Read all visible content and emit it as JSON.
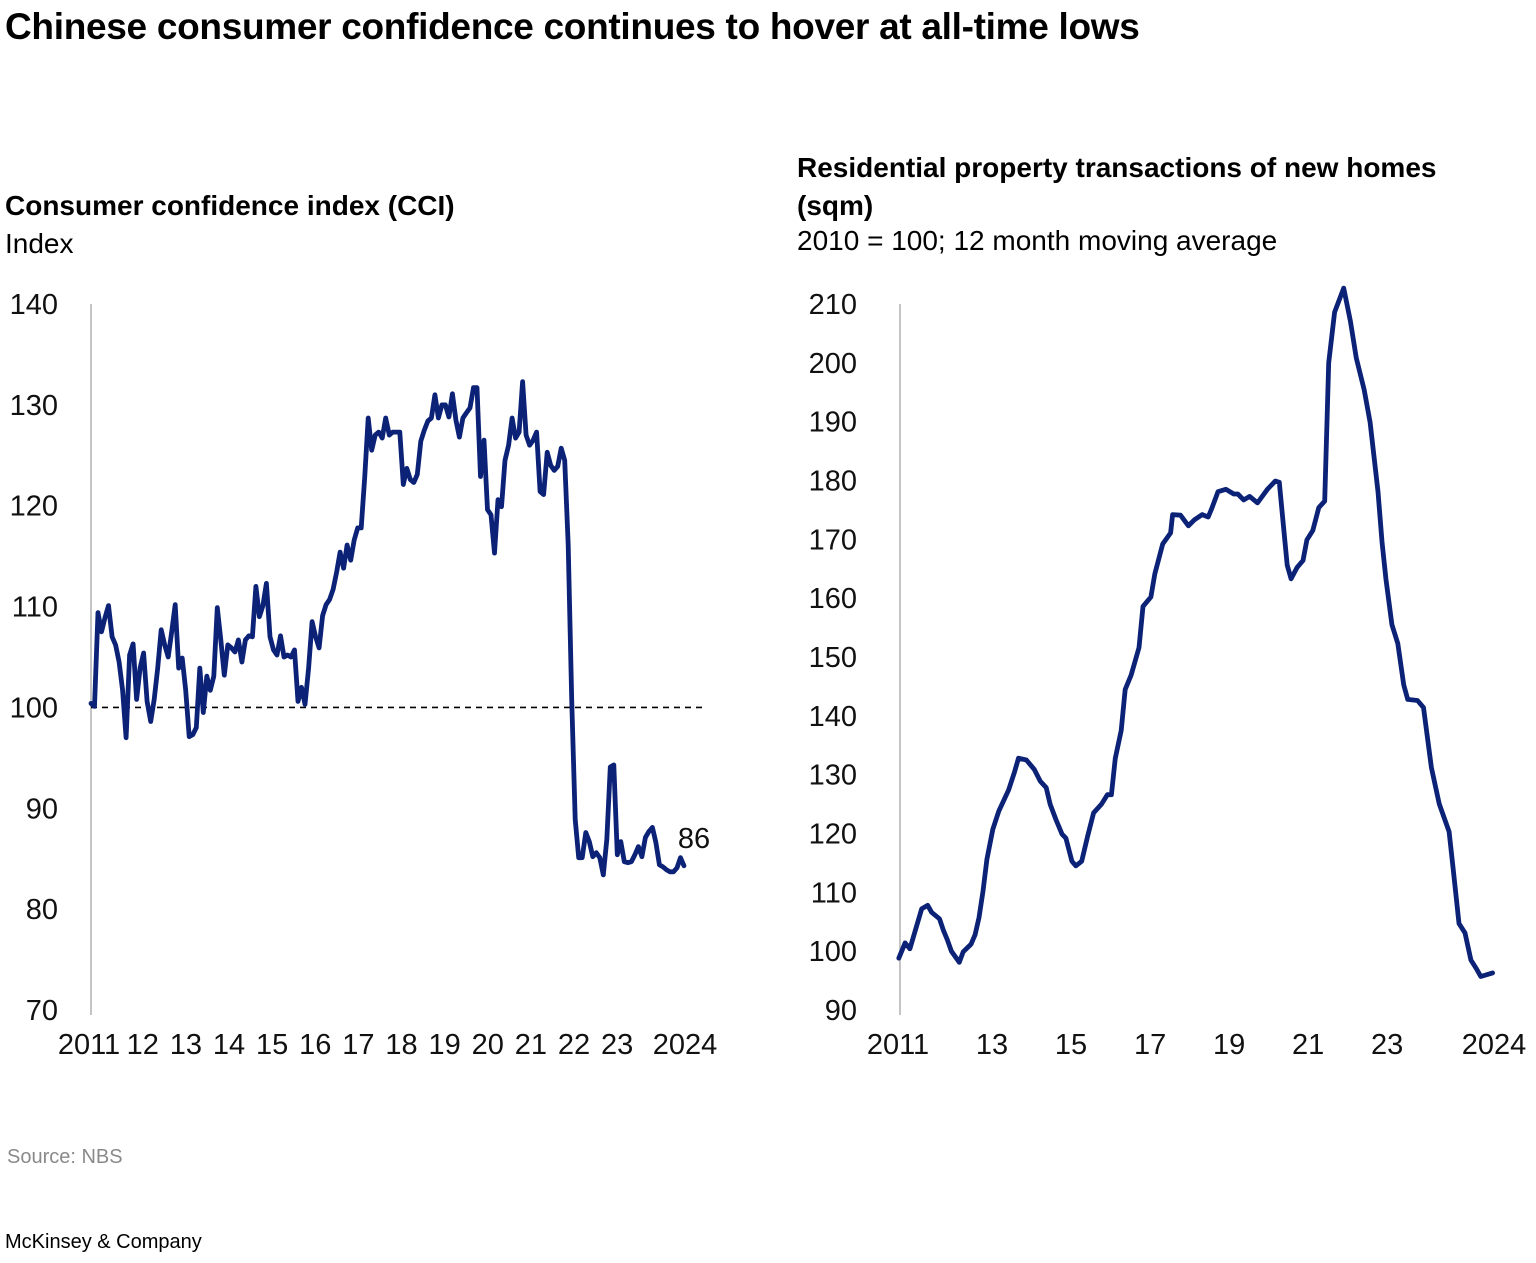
{
  "title": "Chinese consumer confidence continues to hover at all-time lows",
  "source": "Source: NBS",
  "brand": "McKinsey & Company",
  "colors": {
    "line": "#0b2277",
    "axis": "#b0b0b0",
    "reference": "#000000"
  },
  "chart_data": [
    {
      "type": "line",
      "title": "Consumer confidence index (CCI)",
      "subtitle": "Index",
      "ylim": [
        70,
        140
      ],
      "yticks": [
        70,
        80,
        90,
        100,
        110,
        120,
        130,
        140
      ],
      "xlim": [
        2010.8,
        2024.55
      ],
      "xticks": [
        {
          "value": 2011,
          "label": "2011"
        },
        {
          "value": 2012,
          "label": "12"
        },
        {
          "value": 2013,
          "label": "13"
        },
        {
          "value": 2014,
          "label": "14"
        },
        {
          "value": 2015,
          "label": "15"
        },
        {
          "value": 2016,
          "label": "16"
        },
        {
          "value": 2017,
          "label": "17"
        },
        {
          "value": 2018,
          "label": "18"
        },
        {
          "value": 2019,
          "label": "19"
        },
        {
          "value": 2020,
          "label": "20"
        },
        {
          "value": 2021,
          "label": "21"
        },
        {
          "value": 2022,
          "label": "22"
        },
        {
          "value": 2023,
          "label": "23"
        },
        {
          "value": 2024,
          "label": "2024"
        }
      ],
      "reference_line": 100,
      "end_label": "86",
      "grid": false,
      "values": [
        100.4,
        100.1,
        109.4,
        107.5,
        108.9,
        110.1,
        107.0,
        106.2,
        104.5,
        101.7,
        97.0,
        105.2,
        106.3,
        100.8,
        103.9,
        105.4,
        100.6,
        98.6,
        100.8,
        103.9,
        107.7,
        106.2,
        105.0,
        107.5,
        110.2,
        103.9,
        104.9,
        101.7,
        97.1,
        97.3,
        98.0,
        103.9,
        99.5,
        103.1,
        101.7,
        103.1,
        109.9,
        106.7,
        103.2,
        106.2,
        105.9,
        105.5,
        106.7,
        104.5,
        106.7,
        107.1,
        107.0,
        112.0,
        109.0,
        110.1,
        112.3,
        107.0,
        105.7,
        105.2,
        107.1,
        105.0,
        105.2,
        105.0,
        105.7,
        100.6,
        102.0,
        100.3,
        103.9,
        108.5,
        107.0,
        105.9,
        109.1,
        110.2,
        110.7,
        111.7,
        113.4,
        115.4,
        113.8,
        116.1,
        114.6,
        116.6,
        117.8,
        117.8,
        122.8,
        128.7,
        125.5,
        127.0,
        127.3,
        126.7,
        128.7,
        127.0,
        127.3,
        127.3,
        127.3,
        122.1,
        123.7,
        122.6,
        122.3,
        123.1,
        126.4,
        127.5,
        128.4,
        128.7,
        131.0,
        128.7,
        130.0,
        130.0,
        128.8,
        131.1,
        128.5,
        126.8,
        128.7,
        129.2,
        129.7,
        131.7,
        131.7,
        122.9,
        126.5,
        119.6,
        119.1,
        115.3,
        120.6,
        119.9,
        124.5,
        126.0,
        128.7,
        126.7,
        127.3,
        132.3,
        127.0,
        126.0,
        126.5,
        127.3,
        121.4,
        121.1,
        125.3,
        124.0,
        123.5,
        123.9,
        125.7,
        124.5,
        116.1,
        100.8,
        88.9,
        85.1,
        85.1,
        87.6,
        86.7,
        85.2,
        85.6,
        85.1,
        83.4,
        86.9,
        94.1,
        94.3,
        85.4,
        86.7,
        84.7,
        84.6,
        84.7,
        85.4,
        86.2,
        85.2,
        87.1,
        87.7,
        88.1,
        86.6,
        84.4,
        84.2,
        83.9,
        83.7,
        83.7,
        84.1,
        85.1,
        84.3
      ]
    },
    {
      "type": "line",
      "title": "Residential property transactions of new homes (sqm)",
      "subtitle": "2010 = 100; 12 month moving average",
      "ylim": [
        90,
        210
      ],
      "yticks": [
        90,
        100,
        110,
        120,
        130,
        140,
        150,
        160,
        170,
        180,
        190,
        200,
        210
      ],
      "xlim": [
        2010.67,
        2025.68
      ],
      "xticks": [
        {
          "value": 2011,
          "label": "2011"
        },
        {
          "value": 2013,
          "label": "13"
        },
        {
          "value": 2015,
          "label": "15"
        },
        {
          "value": 2017,
          "label": "17"
        },
        {
          "value": 2019,
          "label": "19"
        },
        {
          "value": 2021,
          "label": "21"
        },
        {
          "value": 2023,
          "label": "23"
        },
        {
          "value": 2024,
          "label": "2024"
        }
      ],
      "grid": false,
      "points": [
        [
          2010.64,
          98.8
        ],
        [
          2010.8,
          101.4
        ],
        [
          2010.92,
          100.4
        ],
        [
          2011.22,
          107.2
        ],
        [
          2011.37,
          107.8
        ],
        [
          2011.47,
          106.6
        ],
        [
          2011.67,
          105.5
        ],
        [
          2011.77,
          103.5
        ],
        [
          2011.87,
          101.9
        ],
        [
          2011.97,
          100.0
        ],
        [
          2012.17,
          98.1
        ],
        [
          2012.27,
          99.9
        ],
        [
          2012.47,
          101.2
        ],
        [
          2012.57,
          102.8
        ],
        [
          2012.67,
          105.7
        ],
        [
          2012.77,
          110.2
        ],
        [
          2012.87,
          115.6
        ],
        [
          2013.02,
          120.7
        ],
        [
          2013.17,
          123.8
        ],
        [
          2013.42,
          127.4
        ],
        [
          2013.57,
          130.5
        ],
        [
          2013.67,
          132.8
        ],
        [
          2013.87,
          132.5
        ],
        [
          2014.07,
          130.9
        ],
        [
          2014.22,
          128.9
        ],
        [
          2014.37,
          127.8
        ],
        [
          2014.47,
          125.0
        ],
        [
          2014.62,
          122.3
        ],
        [
          2014.77,
          119.9
        ],
        [
          2014.87,
          119.2
        ],
        [
          2015.02,
          115.3
        ],
        [
          2015.12,
          114.5
        ],
        [
          2015.27,
          115.3
        ],
        [
          2015.42,
          119.6
        ],
        [
          2015.57,
          123.5
        ],
        [
          2015.77,
          125.0
        ],
        [
          2015.92,
          126.6
        ],
        [
          2016.02,
          126.6
        ],
        [
          2016.12,
          132.8
        ],
        [
          2016.27,
          137.5
        ],
        [
          2016.37,
          144.5
        ],
        [
          2016.52,
          146.9
        ],
        [
          2016.72,
          151.6
        ],
        [
          2016.82,
          158.6
        ],
        [
          2017.02,
          160.2
        ],
        [
          2017.12,
          164.1
        ],
        [
          2017.32,
          169.2
        ],
        [
          2017.52,
          171.1
        ],
        [
          2017.57,
          174.2
        ],
        [
          2017.77,
          174.1
        ],
        [
          2017.97,
          172.3
        ],
        [
          2018.12,
          173.3
        ],
        [
          2018.32,
          174.2
        ],
        [
          2018.47,
          173.8
        ],
        [
          2018.57,
          175.4
        ],
        [
          2018.72,
          178.1
        ],
        [
          2018.92,
          178.5
        ],
        [
          2019.12,
          177.7
        ],
        [
          2019.22,
          177.7
        ],
        [
          2019.37,
          176.7
        ],
        [
          2019.52,
          177.3
        ],
        [
          2019.72,
          176.2
        ],
        [
          2019.97,
          178.5
        ],
        [
          2020.17,
          179.9
        ],
        [
          2020.27,
          179.7
        ],
        [
          2020.37,
          172.7
        ],
        [
          2020.47,
          165.6
        ],
        [
          2020.57,
          163.3
        ],
        [
          2020.72,
          165.2
        ],
        [
          2020.87,
          166.4
        ],
        [
          2020.97,
          169.9
        ],
        [
          2021.12,
          171.5
        ],
        [
          2021.27,
          175.4
        ],
        [
          2021.42,
          176.5
        ],
        [
          2021.52,
          200.0
        ],
        [
          2021.67,
          208.6
        ],
        [
          2021.9,
          212.7
        ],
        [
          2022.07,
          207.1
        ],
        [
          2022.22,
          200.8
        ],
        [
          2022.42,
          195.4
        ],
        [
          2022.57,
          189.9
        ],
        [
          2022.77,
          178.1
        ],
        [
          2022.87,
          169.6
        ],
        [
          2022.97,
          163.3
        ],
        [
          2023.12,
          155.5
        ],
        [
          2023.27,
          152.3
        ],
        [
          2023.42,
          145.3
        ],
        [
          2023.52,
          142.8
        ],
        [
          2023.77,
          142.6
        ],
        [
          2023.92,
          141.4
        ],
        [
          2024.12,
          131.2
        ],
        [
          2024.32,
          125.0
        ],
        [
          2024.57,
          120.3
        ],
        [
          2024.67,
          114.1
        ],
        [
          2024.82,
          104.7
        ],
        [
          2024.97,
          103.1
        ],
        [
          2025.12,
          98.5
        ],
        [
          2025.27,
          96.9
        ],
        [
          2025.37,
          95.7
        ],
        [
          2025.67,
          96.3
        ]
      ]
    }
  ]
}
